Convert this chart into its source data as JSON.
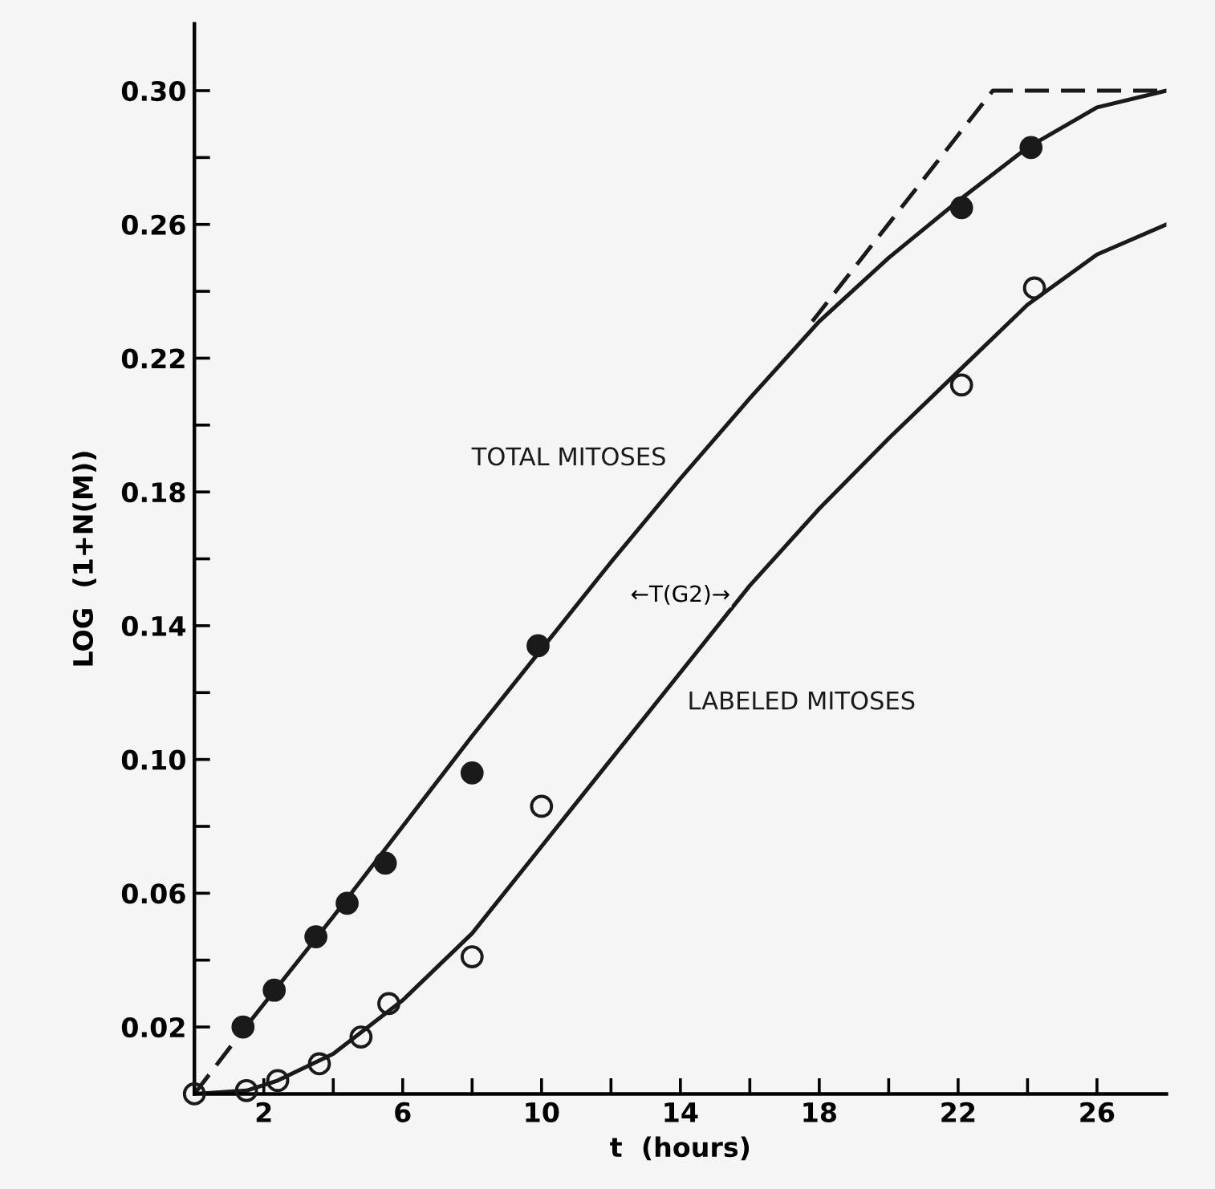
{
  "chart_data": {
    "type": "line",
    "xlabel": "t  (hours)",
    "ylabel": "LOG  (1+N(M))",
    "xlim": [
      0,
      28
    ],
    "ylim": [
      0,
      0.32
    ],
    "xticks": [
      2,
      {
        "value": 4,
        "label": null
      },
      6,
      {
        "value": 8,
        "label": null
      },
      10,
      {
        "value": 12,
        "label": null
      },
      14,
      {
        "value": 16,
        "label": null
      },
      18,
      {
        "value": 20,
        "label": null
      },
      22,
      {
        "value": 24,
        "label": null
      },
      26
    ],
    "yticks": [
      {
        "value": 0.02,
        "label": "0.02"
      },
      {
        "value": 0.04,
        "label": null
      },
      {
        "value": 0.06,
        "label": "0.06"
      },
      {
        "value": 0.08,
        "label": null
      },
      {
        "value": 0.1,
        "label": "0.10"
      },
      {
        "value": 0.12,
        "label": null
      },
      {
        "value": 0.14,
        "label": "0.14"
      },
      {
        "value": 0.16,
        "label": null
      },
      {
        "value": 0.18,
        "label": "0.18"
      },
      {
        "value": 0.2,
        "label": null
      },
      {
        "value": 0.22,
        "label": "0.22"
      },
      {
        "value": 0.24,
        "label": null
      },
      {
        "value": 0.26,
        "label": "0.26"
      },
      {
        "value": 0.28,
        "label": null
      },
      {
        "value": 0.3,
        "label": "0.30"
      }
    ],
    "grid": false,
    "legend": false,
    "series": [
      {
        "name": "TOTAL MITOSES",
        "color": "#1a1a1a",
        "line_style": "solid",
        "marker": "none",
        "x": [
          1.4,
          4,
          6,
          8,
          10,
          12,
          14,
          16,
          18,
          20,
          22,
          24,
          26,
          28
        ],
        "values": [
          0.019,
          0.053,
          0.08,
          0.107,
          0.133,
          0.159,
          0.184,
          0.208,
          0.231,
          0.25,
          0.267,
          0.283,
          0.295,
          0.3
        ]
      },
      {
        "name": "LABELED MITOSES",
        "color": "#1a1a1a",
        "line_style": "solid",
        "marker": "none",
        "x": [
          0,
          1.5,
          2.4,
          4,
          6,
          8,
          10,
          12,
          14,
          16,
          18,
          20,
          22,
          24,
          26,
          28
        ],
        "values": [
          0.0,
          0.001,
          0.004,
          0.012,
          0.028,
          0.048,
          0.074,
          0.1,
          0.126,
          0.152,
          0.175,
          0.196,
          0.216,
          0.236,
          0.251,
          0.26
        ]
      },
      {
        "type": "line",
        "color": "#1a1a1a",
        "line_style": "dashed",
        "marker": "none",
        "x": [
          0,
          1.4
        ],
        "values": [
          0.0,
          0.019
        ]
      },
      {
        "type": "line",
        "color": "#1a1a1a",
        "line_style": "dashed",
        "marker": "none",
        "x": [
          17.8,
          23,
          28
        ],
        "values": [
          0.231,
          0.3,
          0.3
        ]
      },
      {
        "type": "scatter",
        "color": "#1a1a1a",
        "marker": "circle",
        "x": [
          1.4,
          2.3,
          3.5,
          4.4,
          5.5,
          8.0,
          9.9,
          22.1,
          24.1
        ],
        "values": [
          0.02,
          0.031,
          0.047,
          0.057,
          0.069,
          0.096,
          0.134,
          0.265,
          0.283
        ]
      },
      {
        "type": "scatter",
        "color": "#1a1a1a",
        "marker": "circle",
        "x": [
          0,
          1.5,
          2.4,
          3.6,
          4.8,
          5.6,
          8.0,
          10.0,
          22.1,
          24.2
        ],
        "values": [
          0.0,
          0.001,
          0.004,
          0.009,
          0.017,
          0.027,
          0.041,
          0.086,
          0.212,
          0.241
        ]
      }
    ],
    "annotations": [
      "←T(G2)→"
    ]
  }
}
